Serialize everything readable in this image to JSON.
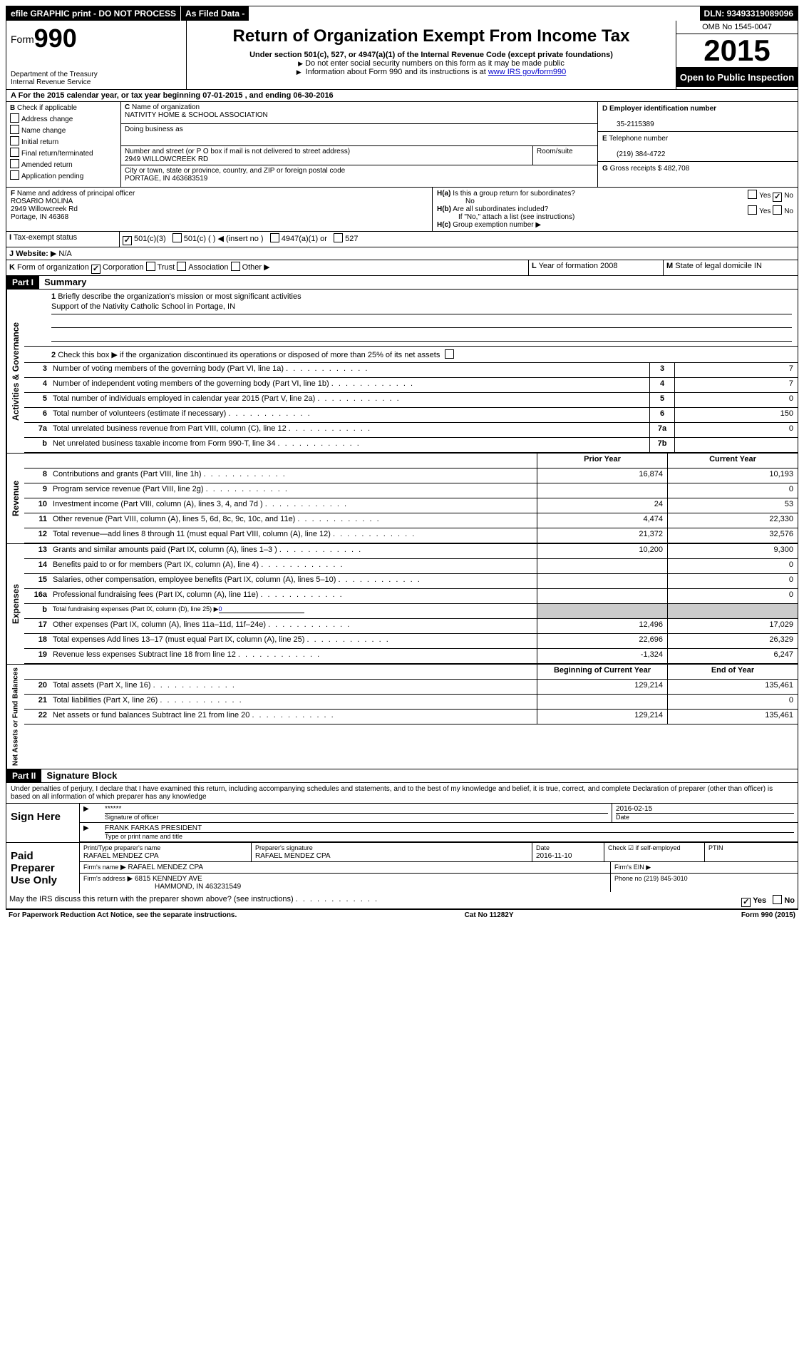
{
  "topbar": {
    "efile": "efile GRAPHIC print - DO NOT PROCESS",
    "asfiled": "As Filed Data -",
    "dln_label": "DLN:",
    "dln": "93493319089096"
  },
  "header": {
    "form_label": "Form",
    "form_no": "990",
    "dept": "Department of the Treasury",
    "irs": "Internal Revenue Service",
    "title": "Return of Organization Exempt From Income Tax",
    "subtitle": "Under section 501(c), 527, or 4947(a)(1) of the Internal Revenue Code (except private foundations)",
    "note1": "Do not enter social security numbers on this form as it may be made public",
    "note2_a": "Information about Form 990 and its instructions is at ",
    "note2_link": "www IRS gov/form990",
    "omb": "OMB No 1545-0047",
    "year": "2015",
    "inspect": "Open to Public Inspection"
  },
  "a": {
    "text_a": "For the 2015 calendar year, or tax year beginning ",
    "begin": "07-01-2015",
    "text_b": " , and ending ",
    "end": "06-30-2016"
  },
  "b": {
    "label": "Check if applicable",
    "opts": [
      "Address change",
      "Name change",
      "Initial return",
      "Final return/terminated",
      "Amended return",
      "Application pending"
    ]
  },
  "c": {
    "label_name": "Name of organization",
    "name": "NATIVITY HOME & SCHOOL ASSOCIATION",
    "dba_label": "Doing business as",
    "dba": "",
    "street_label": "Number and street (or P O box if mail is not delivered to street address)",
    "room_label": "Room/suite",
    "street": "2949 WILLOWCREEK RD",
    "city_label": "City or town, state or province, country, and ZIP or foreign postal code",
    "city": "PORTAGE, IN 463683519"
  },
  "d": {
    "label": "Employer identification number",
    "val": "35-2115389"
  },
  "e": {
    "label": "Telephone number",
    "val": "(219) 384-4722"
  },
  "g": {
    "label": "Gross receipts $",
    "val": "482,708"
  },
  "f": {
    "label": "Name and address of principal officer",
    "name": "ROSARIO MOLINA",
    "street": "2949 Willowcreek Rd",
    "city": "Portage, IN  46368"
  },
  "h": {
    "a_label": "Is this a group return for subordinates?",
    "a_ans": "No",
    "b_label": "Are all subordinates included?",
    "b_note": "If \"No,\" attach a list (see instructions)",
    "c_label": "Group exemption number"
  },
  "i": {
    "label": "Tax-exempt status",
    "opt1": "501(c)(3)",
    "opt2": "501(c) ( )",
    "insert": "(insert no )",
    "opt3": "4947(a)(1) or",
    "opt4": "527"
  },
  "j": {
    "label": "Website:",
    "val": "N/A"
  },
  "k": {
    "label": "Form of organization",
    "opts": [
      "Corporation",
      "Trust",
      "Association",
      "Other"
    ]
  },
  "l": {
    "label": "Year of formation",
    "val": "2008"
  },
  "m": {
    "label": "State of legal domicile",
    "val": "IN"
  },
  "part1": {
    "hdr": "Part I",
    "title": "Summary",
    "l1_label": "Briefly describe the organization's mission or most significant activities",
    "l1_text": "Support of the Nativity Catholic School in Portage, IN",
    "l2": "Check this box ▶ if the organization discontinued its operations or disposed of more than 25% of its net assets",
    "vlabels": [
      "Activities & Governance",
      "Revenue",
      "Expenses",
      "Net Assets or Fund Balances"
    ],
    "lines_gov": [
      {
        "n": "3",
        "d": "Number of voting members of the governing body (Part VI, line 1a)",
        "bn": "3",
        "v": "7"
      },
      {
        "n": "4",
        "d": "Number of independent voting members of the governing body (Part VI, line 1b)",
        "bn": "4",
        "v": "7"
      },
      {
        "n": "5",
        "d": "Total number of individuals employed in calendar year 2015 (Part V, line 2a)",
        "bn": "5",
        "v": "0"
      },
      {
        "n": "6",
        "d": "Total number of volunteers (estimate if necessary)",
        "bn": "6",
        "v": "150"
      },
      {
        "n": "7a",
        "d": "Total unrelated business revenue from Part VIII, column (C), line 12",
        "bn": "7a",
        "v": "0"
      },
      {
        "n": "b",
        "d": "Net unrelated business taxable income from Form 990-T, line 34",
        "bn": "7b",
        "v": ""
      }
    ],
    "py_label": "Prior Year",
    "cy_label": "Current Year",
    "lines_rev": [
      {
        "n": "8",
        "d": "Contributions and grants (Part VIII, line 1h)",
        "py": "16,874",
        "cy": "10,193"
      },
      {
        "n": "9",
        "d": "Program service revenue (Part VIII, line 2g)",
        "py": "",
        "cy": "0"
      },
      {
        "n": "10",
        "d": "Investment income (Part VIII, column (A), lines 3, 4, and 7d )",
        "py": "24",
        "cy": "53"
      },
      {
        "n": "11",
        "d": "Other revenue (Part VIII, column (A), lines 5, 6d, 8c, 9c, 10c, and 11e)",
        "py": "4,474",
        "cy": "22,330"
      },
      {
        "n": "12",
        "d": "Total revenue—add lines 8 through 11 (must equal Part VIII, column (A), line 12)",
        "py": "21,372",
        "cy": "32,576"
      }
    ],
    "lines_exp": [
      {
        "n": "13",
        "d": "Grants and similar amounts paid (Part IX, column (A), lines 1–3 )",
        "py": "10,200",
        "cy": "9,300"
      },
      {
        "n": "14",
        "d": "Benefits paid to or for members (Part IX, column (A), line 4)",
        "py": "",
        "cy": "0"
      },
      {
        "n": "15",
        "d": "Salaries, other compensation, employee benefits (Part IX, column (A), lines 5–10)",
        "py": "",
        "cy": "0"
      },
      {
        "n": "16a",
        "d": "Professional fundraising fees (Part IX, column (A), line 11e)",
        "py": "",
        "cy": "0"
      },
      {
        "n": "b",
        "d": "Total fundraising expenses (Part IX, column (D), line 25) ▶",
        "py": null,
        "cy": null,
        "sub": "0"
      },
      {
        "n": "17",
        "d": "Other expenses (Part IX, column (A), lines 11a–11d, 11f–24e)",
        "py": "12,496",
        "cy": "17,029"
      },
      {
        "n": "18",
        "d": "Total expenses Add lines 13–17 (must equal Part IX, column (A), line 25)",
        "py": "22,696",
        "cy": "26,329"
      },
      {
        "n": "19",
        "d": "Revenue less expenses Subtract line 18 from line 12",
        "py": "-1,324",
        "cy": "6,247"
      }
    ],
    "bcy_label": "Beginning of Current Year",
    "eoy_label": "End of Year",
    "lines_net": [
      {
        "n": "20",
        "d": "Total assets (Part X, line 16)",
        "py": "129,214",
        "cy": "135,461"
      },
      {
        "n": "21",
        "d": "Total liabilities (Part X, line 26)",
        "py": "",
        "cy": "0"
      },
      {
        "n": "22",
        "d": "Net assets or fund balances Subtract line 21 from line 20",
        "py": "129,214",
        "cy": "135,461"
      }
    ]
  },
  "part2": {
    "hdr": "Part II",
    "title": "Signature Block",
    "penalty": "Under penalties of perjury, I declare that I have examined this return, including accompanying schedules and statements, and to the best of my knowledge and belief, it is true, correct, and complete Declaration of preparer (other than officer) is based on all information of which preparer has any knowledge",
    "sign_here": "Sign Here",
    "sig_masked": "******",
    "sig_of_officer": "Signature of officer",
    "sig_date": "2016-02-15",
    "date_lbl": "Date",
    "officer_name": "FRANK FARKAS PRESIDENT",
    "type_print": "Type or print name and title",
    "paid": "Paid Preparer Use Only",
    "prep_name_lbl": "Print/Type preparer's name",
    "prep_name": "RAFAEL MENDEZ CPA",
    "prep_sig_lbl": "Preparer's signature",
    "prep_sig": "RAFAEL MENDEZ CPA",
    "prep_date_lbl": "Date",
    "prep_date": "2016-11-10",
    "self_emp": "Check ☑ if self-employed",
    "ptin": "PTIN",
    "firm_name_lbl": "Firm's name",
    "firm_name": "RAFAEL MENDEZ CPA",
    "firm_ein": "Firm's EIN",
    "firm_addr_lbl": "Firm's address",
    "firm_addr": "6815 KENNEDY AVE",
    "firm_city": "HAMMOND, IN  463231549",
    "phone_lbl": "Phone no",
    "phone": "(219) 845-3010",
    "discuss": "May the IRS discuss this return with the preparer shown above? (see instructions)",
    "yes": "Yes",
    "no": "No"
  },
  "footer": {
    "left": "For Paperwork Reduction Act Notice, see the separate instructions.",
    "mid": "Cat No 11282Y",
    "right": "Form 990 (2015)"
  },
  "labels": {
    "yes": "Yes",
    "no": "No",
    "ha": "H(a)",
    "hb": "H(b)",
    "hc": "H(c)",
    "A": "A",
    "B": "B",
    "C": "C",
    "D": "D",
    "E": "E",
    "F": "F",
    "G": "G",
    "I": "I",
    "J": "J",
    "K": "K",
    "L": "L",
    "M": "M"
  }
}
